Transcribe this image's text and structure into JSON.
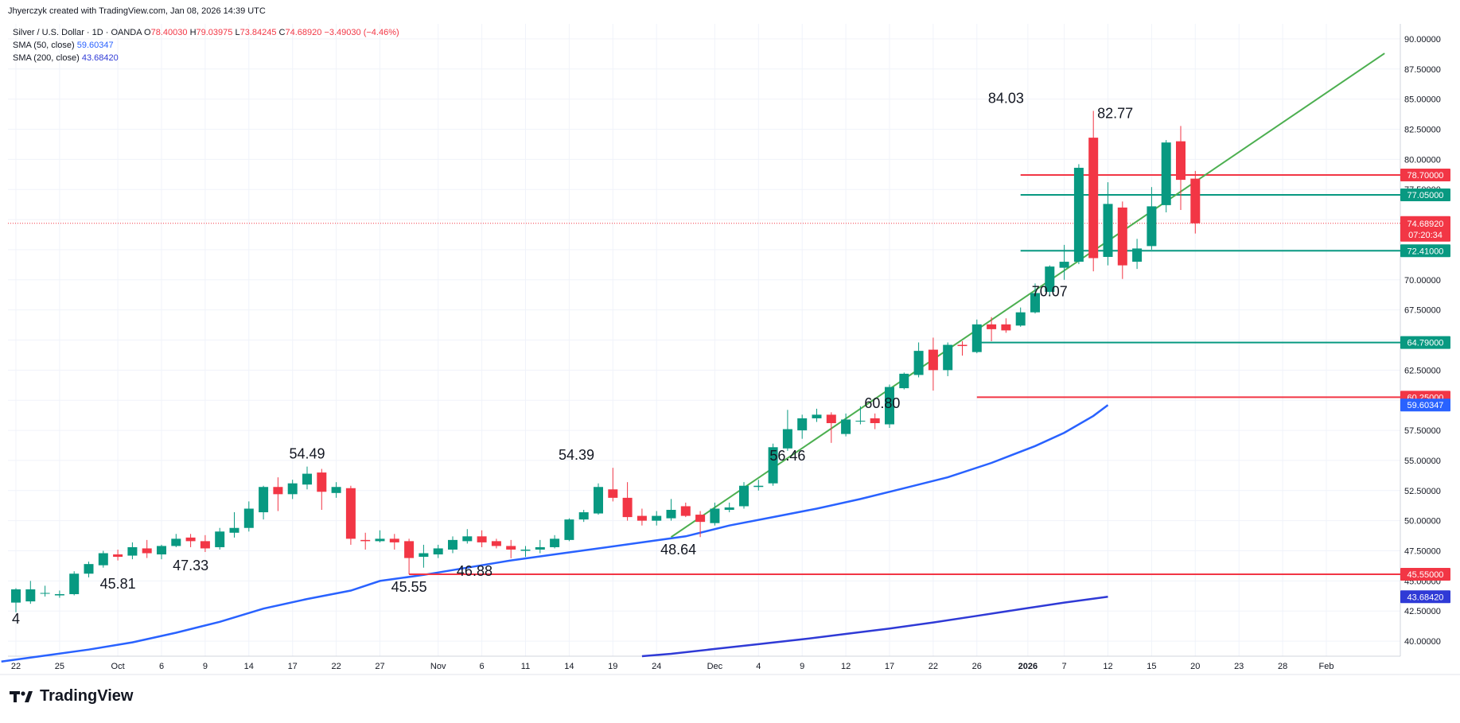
{
  "header": {
    "credit": "Jhyerczyk created with TradingView.com, Jan 08, 2026 14:39 UTC",
    "symbol": "Silver / U.S. Dollar · 1D · OANDA",
    "ohlc": {
      "o_label": "O",
      "o": "78.40030",
      "h_label": "H",
      "h": "79.03975",
      "l_label": "L",
      "l": "73.84245",
      "c_label": "C",
      "c": "74.68920",
      "change": "−3.49030 (−4.46%)"
    },
    "sma50": {
      "label": "SMA (50, close)",
      "value": "59.60347"
    },
    "sma200": {
      "label": "SMA (200, close)",
      "value": "43.68420"
    }
  },
  "brand": {
    "name": "TradingView",
    "logo_icon": "tradingview-logo-icon"
  },
  "colors": {
    "up": "#089981",
    "down": "#f23645",
    "sma50": "#2962ff",
    "sma200": "#2f3ad6",
    "trendline": "#4caf50",
    "support": "#089981",
    "resistance": "#f23645",
    "grid": "#f0f3fa"
  },
  "chart_data": {
    "type": "candlestick",
    "y_axis": {
      "range": [
        38.75,
        91.25
      ],
      "ticks": [
        "40.00000",
        "42.50000",
        "45.00000",
        "47.50000",
        "50.00000",
        "52.50000",
        "55.00000",
        "57.50000",
        "60.00000",
        "62.50000",
        "65.00000",
        "67.50000",
        "70.00000",
        "72.50000",
        "75.00000",
        "77.50000",
        "80.00000",
        "82.50000",
        "85.00000",
        "87.50000",
        "90.00000"
      ]
    },
    "x_axis": {
      "ticks": [
        {
          "i": 0,
          "label": "22",
          "bold": false
        },
        {
          "i": 3,
          "label": "25",
          "bold": false
        },
        {
          "i": 7,
          "label": "Oct",
          "bold": false
        },
        {
          "i": 10,
          "label": "6",
          "bold": false
        },
        {
          "i": 13,
          "label": "9",
          "bold": false
        },
        {
          "i": 16,
          "label": "14",
          "bold": false
        },
        {
          "i": 19,
          "label": "17",
          "bold": false
        },
        {
          "i": 22,
          "label": "22",
          "bold": false
        },
        {
          "i": 25,
          "label": "27",
          "bold": false
        },
        {
          "i": 29,
          "label": "Nov",
          "bold": false
        },
        {
          "i": 32,
          "label": "6",
          "bold": false
        },
        {
          "i": 35,
          "label": "11",
          "bold": false
        },
        {
          "i": 38,
          "label": "14",
          "bold": false
        },
        {
          "i": 41,
          "label": "19",
          "bold": false
        },
        {
          "i": 44,
          "label": "24",
          "bold": false
        },
        {
          "i": 48,
          "label": "Dec",
          "bold": false
        },
        {
          "i": 51,
          "label": "4",
          "bold": false
        },
        {
          "i": 54,
          "label": "9",
          "bold": false
        },
        {
          "i": 57,
          "label": "12",
          "bold": false
        },
        {
          "i": 60,
          "label": "17",
          "bold": false
        },
        {
          "i": 63,
          "label": "22",
          "bold": false
        },
        {
          "i": 66,
          "label": "26",
          "bold": false
        },
        {
          "i": 69.5,
          "label": "2026",
          "bold": true
        },
        {
          "i": 72,
          "label": "7",
          "bold": false
        },
        {
          "i": 75,
          "label": "12",
          "bold": false
        },
        {
          "i": 78,
          "label": "15",
          "bold": false
        },
        {
          "i": 81,
          "label": "20",
          "bold": false
        },
        {
          "i": 84,
          "label": "23",
          "bold": false
        },
        {
          "i": 87,
          "label": "28",
          "bold": false
        },
        {
          "i": 90,
          "label": "Feb",
          "bold": false
        }
      ]
    },
    "candles": [
      {
        "o": 43.2,
        "h": 44.4,
        "l": 42.4,
        "c": 44.3
      },
      {
        "o": 43.3,
        "h": 45.0,
        "l": 43.1,
        "c": 44.3
      },
      {
        "o": 44.0,
        "h": 44.6,
        "l": 43.7,
        "c": 44.0
      },
      {
        "o": 43.8,
        "h": 44.2,
        "l": 43.6,
        "c": 43.9
      },
      {
        "o": 43.9,
        "h": 45.8,
        "l": 43.8,
        "c": 45.6
      },
      {
        "o": 45.6,
        "h": 46.6,
        "l": 45.3,
        "c": 46.4
      },
      {
        "o": 46.3,
        "h": 47.5,
        "l": 46.1,
        "c": 47.3
      },
      {
        "o": 47.2,
        "h": 47.6,
        "l": 46.7,
        "c": 47.0
      },
      {
        "o": 47.1,
        "h": 48.2,
        "l": 46.8,
        "c": 47.8
      },
      {
        "o": 47.7,
        "h": 48.4,
        "l": 46.9,
        "c": 47.3
      },
      {
        "o": 47.2,
        "h": 48.0,
        "l": 46.8,
        "c": 47.9
      },
      {
        "o": 47.9,
        "h": 48.9,
        "l": 47.8,
        "c": 48.5
      },
      {
        "o": 48.6,
        "h": 48.9,
        "l": 47.8,
        "c": 48.3
      },
      {
        "o": 48.3,
        "h": 48.8,
        "l": 47.4,
        "c": 47.7
      },
      {
        "o": 47.8,
        "h": 49.4,
        "l": 47.6,
        "c": 49.1
      },
      {
        "o": 49.0,
        "h": 50.7,
        "l": 48.6,
        "c": 49.4
      },
      {
        "o": 49.4,
        "h": 51.6,
        "l": 49.1,
        "c": 51.0
      },
      {
        "o": 50.7,
        "h": 52.9,
        "l": 50.1,
        "c": 52.8
      },
      {
        "o": 52.8,
        "h": 53.6,
        "l": 50.8,
        "c": 52.2
      },
      {
        "o": 52.2,
        "h": 53.4,
        "l": 51.8,
        "c": 53.1
      },
      {
        "o": 53.0,
        "h": 54.49,
        "l": 52.6,
        "c": 53.9
      },
      {
        "o": 54.0,
        "h": 54.3,
        "l": 50.9,
        "c": 52.4
      },
      {
        "o": 52.3,
        "h": 53.2,
        "l": 51.9,
        "c": 52.8
      },
      {
        "o": 52.7,
        "h": 52.9,
        "l": 48.0,
        "c": 48.5
      },
      {
        "o": 48.4,
        "h": 49.0,
        "l": 47.6,
        "c": 48.3
      },
      {
        "o": 48.3,
        "h": 49.2,
        "l": 48.2,
        "c": 48.5
      },
      {
        "o": 48.5,
        "h": 48.9,
        "l": 47.6,
        "c": 48.2
      },
      {
        "o": 48.3,
        "h": 48.5,
        "l": 45.55,
        "c": 46.9
      },
      {
        "o": 47.0,
        "h": 48.0,
        "l": 46.1,
        "c": 47.3
      },
      {
        "o": 47.2,
        "h": 48.0,
        "l": 46.9,
        "c": 47.7
      },
      {
        "o": 47.6,
        "h": 48.7,
        "l": 47.3,
        "c": 48.4
      },
      {
        "o": 48.3,
        "h": 49.3,
        "l": 48.1,
        "c": 48.7
      },
      {
        "o": 48.7,
        "h": 49.2,
        "l": 47.8,
        "c": 48.2
      },
      {
        "o": 48.3,
        "h": 48.5,
        "l": 47.7,
        "c": 47.9
      },
      {
        "o": 47.9,
        "h": 48.4,
        "l": 46.88,
        "c": 47.6
      },
      {
        "o": 47.5,
        "h": 47.9,
        "l": 47.0,
        "c": 47.6
      },
      {
        "o": 47.6,
        "h": 48.4,
        "l": 47.3,
        "c": 47.8
      },
      {
        "o": 47.8,
        "h": 48.8,
        "l": 47.7,
        "c": 48.5
      },
      {
        "o": 48.4,
        "h": 50.2,
        "l": 48.3,
        "c": 50.1
      },
      {
        "o": 50.1,
        "h": 50.9,
        "l": 49.9,
        "c": 50.7
      },
      {
        "o": 50.6,
        "h": 53.1,
        "l": 50.5,
        "c": 52.8
      },
      {
        "o": 52.6,
        "h": 54.39,
        "l": 51.6,
        "c": 51.9
      },
      {
        "o": 51.9,
        "h": 53.2,
        "l": 50.0,
        "c": 50.3
      },
      {
        "o": 50.4,
        "h": 51.0,
        "l": 49.6,
        "c": 50.0
      },
      {
        "o": 50.0,
        "h": 50.8,
        "l": 49.6,
        "c": 50.4
      },
      {
        "o": 50.2,
        "h": 51.8,
        "l": 50.0,
        "c": 50.9
      },
      {
        "o": 51.2,
        "h": 51.5,
        "l": 50.3,
        "c": 50.4
      },
      {
        "o": 50.5,
        "h": 50.8,
        "l": 48.64,
        "c": 49.9
      },
      {
        "o": 49.8,
        "h": 51.5,
        "l": 49.6,
        "c": 51.0
      },
      {
        "o": 50.9,
        "h": 51.5,
        "l": 50.7,
        "c": 51.1
      },
      {
        "o": 51.2,
        "h": 53.2,
        "l": 51.0,
        "c": 52.9
      },
      {
        "o": 52.8,
        "h": 53.4,
        "l": 52.5,
        "c": 52.9
      },
      {
        "o": 53.1,
        "h": 56.4,
        "l": 52.9,
        "c": 56.1
      },
      {
        "o": 56.0,
        "h": 59.2,
        "l": 55.8,
        "c": 57.6
      },
      {
        "o": 57.5,
        "h": 58.8,
        "l": 56.8,
        "c": 58.5
      },
      {
        "o": 58.5,
        "h": 59.3,
        "l": 58.2,
        "c": 58.8
      },
      {
        "o": 58.8,
        "h": 59.0,
        "l": 56.46,
        "c": 58.1
      },
      {
        "o": 57.2,
        "h": 58.9,
        "l": 57.0,
        "c": 58.4
      },
      {
        "o": 58.3,
        "h": 59.5,
        "l": 58.0,
        "c": 58.3
      },
      {
        "o": 58.5,
        "h": 58.9,
        "l": 57.6,
        "c": 58.1
      },
      {
        "o": 58.0,
        "h": 61.3,
        "l": 57.7,
        "c": 61.1
      },
      {
        "o": 61.0,
        "h": 62.3,
        "l": 60.9,
        "c": 62.2
      },
      {
        "o": 62.1,
        "h": 64.8,
        "l": 61.9,
        "c": 64.1
      },
      {
        "o": 64.2,
        "h": 65.2,
        "l": 60.8,
        "c": 62.5
      },
      {
        "o": 62.5,
        "h": 64.8,
        "l": 62.0,
        "c": 64.6
      },
      {
        "o": 64.6,
        "h": 64.9,
        "l": 63.7,
        "c": 64.5
      },
      {
        "o": 64.0,
        "h": 66.7,
        "l": 63.9,
        "c": 66.3
      },
      {
        "o": 66.3,
        "h": 66.9,
        "l": 64.9,
        "c": 65.9
      },
      {
        "o": 66.3,
        "h": 66.8,
        "l": 65.6,
        "c": 65.8
      },
      {
        "o": 66.2,
        "h": 67.7,
        "l": 66.1,
        "c": 67.3
      },
      {
        "o": 67.3,
        "h": 69.7,
        "l": 67.2,
        "c": 68.9
      },
      {
        "o": 69.0,
        "h": 71.2,
        "l": 68.7,
        "c": 71.1
      },
      {
        "o": 71.0,
        "h": 72.9,
        "l": 70.0,
        "c": 71.5
      },
      {
        "o": 71.5,
        "h": 79.6,
        "l": 71.3,
        "c": 79.3
      },
      {
        "o": 81.8,
        "h": 84.03,
        "l": 70.7,
        "c": 71.8
      },
      {
        "o": 71.9,
        "h": 78.1,
        "l": 71.2,
        "c": 76.3
      },
      {
        "o": 76.0,
        "h": 76.5,
        "l": 70.07,
        "c": 71.2
      },
      {
        "o": 71.5,
        "h": 73.4,
        "l": 70.9,
        "c": 72.6
      },
      {
        "o": 72.8,
        "h": 77.7,
        "l": 72.5,
        "c": 76.1
      },
      {
        "o": 76.2,
        "h": 81.6,
        "l": 75.6,
        "c": 81.4
      },
      {
        "o": 81.5,
        "h": 82.77,
        "l": 75.8,
        "c": 78.3
      },
      {
        "o": 78.4003,
        "h": 79.03975,
        "l": 73.84245,
        "c": 74.6892
      }
    ],
    "sma50": [
      [
        25,
        45.0
      ],
      [
        28,
        45.5
      ],
      [
        31,
        46.1
      ],
      [
        34,
        46.7
      ],
      [
        37,
        47.2
      ],
      [
        40,
        47.7
      ],
      [
        43,
        48.2
      ],
      [
        46,
        48.7
      ],
      [
        49,
        49.6
      ],
      [
        52,
        50.3
      ],
      [
        55,
        51.0
      ],
      [
        58,
        51.8
      ],
      [
        61,
        52.7
      ],
      [
        64,
        53.6
      ],
      [
        67,
        54.8
      ],
      [
        70,
        56.2
      ],
      [
        72,
        57.3
      ],
      [
        74,
        58.7
      ],
      [
        75,
        59.60347
      ]
    ],
    "sma50_early": [
      [
        -1,
        38.3
      ],
      [
        2,
        38.8
      ],
      [
        5,
        39.3
      ],
      [
        8,
        39.9
      ],
      [
        11,
        40.7
      ],
      [
        14,
        41.6
      ],
      [
        17,
        42.7
      ],
      [
        20,
        43.5
      ],
      [
        23,
        44.2
      ],
      [
        25,
        45.0
      ]
    ],
    "sma200": [
      [
        43,
        38.75
      ],
      [
        45,
        38.95
      ],
      [
        48,
        39.35
      ],
      [
        51,
        39.75
      ],
      [
        54,
        40.15
      ],
      [
        57,
        40.6
      ],
      [
        60,
        41.05
      ],
      [
        63,
        41.55
      ],
      [
        66,
        42.1
      ],
      [
        69,
        42.65
      ],
      [
        72,
        43.2
      ],
      [
        75,
        43.6842
      ]
    ],
    "trendline": {
      "from": {
        "i": 45,
        "y": 48.64
      },
      "to": {
        "i": 94,
        "y": 88.8
      }
    },
    "levels": [
      {
        "value": 78.7,
        "label": "78.70000",
        "kind": "resistance",
        "from_i": 69
      },
      {
        "value": 77.05,
        "label": "77.05000",
        "kind": "support",
        "from_i": 69
      },
      {
        "value": 72.41,
        "label": "72.41000",
        "kind": "support",
        "from_i": 69
      },
      {
        "value": 64.79,
        "label": "64.79000",
        "kind": "support",
        "from_i": 66
      },
      {
        "value": 60.25,
        "label": "60.25000",
        "kind": "resistance",
        "from_i": 66
      },
      {
        "value": 45.55,
        "label": "45.55000",
        "kind": "resistance",
        "from_i": 27
      }
    ],
    "last_price": {
      "value": 74.6892,
      "label": "74.68920",
      "countdown": "07:20:34"
    },
    "sma_tags": [
      {
        "value": 59.60347,
        "label": "59.60347",
        "series": "sma50"
      },
      {
        "value": 43.6842,
        "label": "43.68420",
        "series": "sma200"
      }
    ],
    "annotations": [
      {
        "i": 0,
        "price": 42.9,
        "text": "4",
        "pos": "below"
      },
      {
        "i": 7,
        "price": 45.81,
        "text": "45.81",
        "pos": "below"
      },
      {
        "i": 12,
        "price": 47.33,
        "text": "47.33",
        "pos": "below"
      },
      {
        "i": 20,
        "price": 54.49,
        "text": "54.49",
        "pos": "above"
      },
      {
        "i": 27,
        "price": 45.55,
        "text": "45.55",
        "pos": "below"
      },
      {
        "i": 31.5,
        "price": 46.88,
        "text": "46.88",
        "pos": "below"
      },
      {
        "i": 38.5,
        "price": 54.39,
        "text": "54.39",
        "pos": "above"
      },
      {
        "i": 45.5,
        "price": 48.64,
        "text": "48.64",
        "pos": "below"
      },
      {
        "i": 53,
        "price": 56.46,
        "text": "56.46",
        "pos": "below"
      },
      {
        "i": 59.5,
        "price": 60.8,
        "text": "60.80",
        "pos": "below"
      },
      {
        "i": 68,
        "price": 84.03,
        "text": "84.03",
        "pos": "above"
      },
      {
        "i": 71,
        "price": 70.07,
        "text": "70.07",
        "pos": "below"
      },
      {
        "i": 75.5,
        "price": 82.77,
        "text": "82.77",
        "pos": "above"
      }
    ]
  }
}
